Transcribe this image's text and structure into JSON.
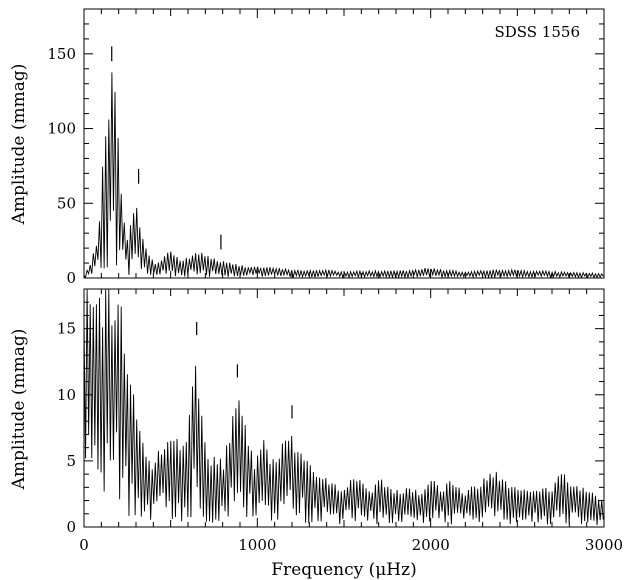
{
  "chart_data": [
    {
      "type": "line",
      "panel": "top",
      "annotation": "SDSS 1556",
      "ylabel": "Amplitude (mmag)",
      "xlabel": "",
      "xlim": [
        0,
        3000
      ],
      "ylim": [
        0,
        180
      ],
      "xticks": [
        0,
        1000,
        2000,
        3000
      ],
      "xticks_labeled": false,
      "yticks": [
        0,
        50,
        100,
        150
      ],
      "ytick_labels": [
        "0",
        "50",
        "100",
        "150"
      ],
      "marker_lines": [
        {
          "x": 160,
          "y_top": 155
        },
        {
          "x": 315,
          "y_top": 73
        },
        {
          "x": 790,
          "y_top": 29
        }
      ],
      "envelope": {
        "x": [
          0,
          40,
          80,
          100,
          120,
          140,
          160,
          180,
          200,
          220,
          250,
          280,
          300,
          320,
          350,
          380,
          420,
          460,
          500,
          560,
          620,
          680,
          760,
          820,
          900,
          1000,
          1100,
          1200,
          1300,
          1400,
          1500,
          1600,
          1800,
          2000,
          2200,
          2400,
          2600,
          2800,
          3000
        ],
        "y": [
          2,
          10,
          30,
          60,
          100,
          125,
          140,
          130,
          95,
          55,
          30,
          42,
          50,
          42,
          25,
          14,
          10,
          15,
          20,
          12,
          16,
          18,
          13,
          11,
          9,
          8,
          7,
          6,
          5,
          6,
          4,
          5,
          5,
          7,
          4,
          6,
          5,
          4,
          3
        ]
      }
    },
    {
      "type": "line",
      "panel": "bottom",
      "annotation": "",
      "ylabel": "Amplitude (mmag)",
      "xlabel": "Frequency (μHz)",
      "xlim": [
        0,
        3000
      ],
      "ylim": [
        0,
        18
      ],
      "xticks": [
        0,
        1000,
        2000,
        3000
      ],
      "xtick_labels": [
        "0",
        "1000",
        "2000",
        "3000"
      ],
      "yticks": [
        0,
        5,
        10,
        15
      ],
      "ytick_labels": [
        "0",
        "5",
        "10",
        "15"
      ],
      "marker_lines": [
        {
          "x": 650,
          "y_top": 15.5
        },
        {
          "x": 885,
          "y_top": 12.3
        },
        {
          "x": 1200,
          "y_top": 9.2
        }
      ],
      "envelope": {
        "x": [
          0,
          50,
          100,
          150,
          200,
          250,
          300,
          350,
          400,
          450,
          500,
          560,
          600,
          640,
          680,
          720,
          760,
          800,
          850,
          890,
          930,
          980,
          1030,
          1080,
          1130,
          1190,
          1240,
          1300,
          1360,
          1430,
          1500,
          1570,
          1650,
          1720,
          1800,
          1880,
          1950,
          2000,
          2060,
          2120,
          2200,
          2300,
          2380,
          2450,
          2520,
          2600,
          2700,
          2760,
          2820,
          2900,
          3000
        ],
        "y": [
          18,
          18,
          18,
          18,
          18,
          14,
          9,
          6.5,
          5,
          6.5,
          7.8,
          6,
          8,
          13.3,
          10,
          5,
          5.5,
          5,
          8,
          10.1,
          8,
          5,
          7,
          5,
          6,
          7.8,
          6,
          5.5,
          4,
          3.5,
          3.2,
          4,
          3,
          3.8,
          2.8,
          3.3,
          2.8,
          4,
          3,
          3.8,
          2.7,
          3.8,
          4.5,
          3.5,
          3.3,
          2.8,
          3.2,
          4.5,
          3.4,
          3,
          2.3
        ]
      }
    }
  ]
}
